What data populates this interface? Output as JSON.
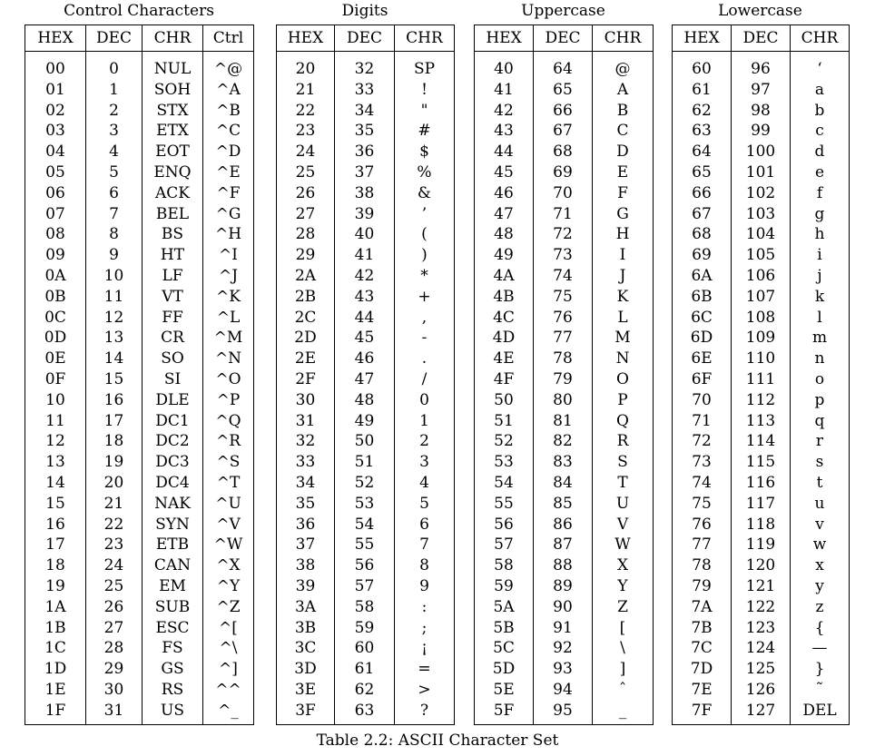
{
  "caption": "Table 2.2: ASCII Character Set",
  "groups": [
    {
      "title": "Control Characters",
      "headers": [
        "HEX",
        "DEC",
        "CHR",
        "Ctrl"
      ],
      "rows": [
        [
          "00",
          "0",
          "NUL",
          "^@"
        ],
        [
          "01",
          "1",
          "SOH",
          "^A"
        ],
        [
          "02",
          "2",
          "STX",
          "^B"
        ],
        [
          "03",
          "3",
          "ETX",
          "^C"
        ],
        [
          "04",
          "4",
          "EOT",
          "^D"
        ],
        [
          "05",
          "5",
          "ENQ",
          "^E"
        ],
        [
          "06",
          "6",
          "ACK",
          "^F"
        ],
        [
          "07",
          "7",
          "BEL",
          "^G"
        ],
        [
          "08",
          "8",
          "BS",
          "^H"
        ],
        [
          "09",
          "9",
          "HT",
          "^I"
        ],
        [
          "0A",
          "10",
          "LF",
          "^J"
        ],
        [
          "0B",
          "11",
          "VT",
          "^K"
        ],
        [
          "0C",
          "12",
          "FF",
          "^L"
        ],
        [
          "0D",
          "13",
          "CR",
          "^M"
        ],
        [
          "0E",
          "14",
          "SO",
          "^N"
        ],
        [
          "0F",
          "15",
          "SI",
          "^O"
        ],
        [
          "10",
          "16",
          "DLE",
          "^P"
        ],
        [
          "11",
          "17",
          "DC1",
          "^Q"
        ],
        [
          "12",
          "18",
          "DC2",
          "^R"
        ],
        [
          "13",
          "19",
          "DC3",
          "^S"
        ],
        [
          "14",
          "20",
          "DC4",
          "^T"
        ],
        [
          "15",
          "21",
          "NAK",
          "^U"
        ],
        [
          "16",
          "22",
          "SYN",
          "^V"
        ],
        [
          "17",
          "23",
          "ETB",
          "^W"
        ],
        [
          "18",
          "24",
          "CAN",
          "^X"
        ],
        [
          "19",
          "25",
          "EM",
          "^Y"
        ],
        [
          "1A",
          "26",
          "SUB",
          "^Z"
        ],
        [
          "1B",
          "27",
          "ESC",
          "^["
        ],
        [
          "1C",
          "28",
          "FS",
          "^\\"
        ],
        [
          "1D",
          "29",
          "GS",
          "^]"
        ],
        [
          "1E",
          "30",
          "RS",
          "^^"
        ],
        [
          "1F",
          "31",
          "US",
          "^_"
        ]
      ]
    },
    {
      "title": "Digits",
      "headers": [
        "HEX",
        "DEC",
        "CHR"
      ],
      "rows": [
        [
          "20",
          "32",
          "SP"
        ],
        [
          "21",
          "33",
          "!"
        ],
        [
          "22",
          "34",
          "\""
        ],
        [
          "23",
          "35",
          "#"
        ],
        [
          "24",
          "36",
          "$"
        ],
        [
          "25",
          "37",
          "%"
        ],
        [
          "26",
          "38",
          "&"
        ],
        [
          "27",
          "39",
          "’"
        ],
        [
          "28",
          "40",
          "("
        ],
        [
          "29",
          "41",
          ")"
        ],
        [
          "2A",
          "42",
          "*"
        ],
        [
          "2B",
          "43",
          "+"
        ],
        [
          "2C",
          "44",
          ","
        ],
        [
          "2D",
          "45",
          "-"
        ],
        [
          "2E",
          "46",
          "."
        ],
        [
          "2F",
          "47",
          "/"
        ],
        [
          "30",
          "48",
          "0"
        ],
        [
          "31",
          "49",
          "1"
        ],
        [
          "32",
          "50",
          "2"
        ],
        [
          "33",
          "51",
          "3"
        ],
        [
          "34",
          "52",
          "4"
        ],
        [
          "35",
          "53",
          "5"
        ],
        [
          "36",
          "54",
          "6"
        ],
        [
          "37",
          "55",
          "7"
        ],
        [
          "38",
          "56",
          "8"
        ],
        [
          "39",
          "57",
          "9"
        ],
        [
          "3A",
          "58",
          ":"
        ],
        [
          "3B",
          "59",
          ";"
        ],
        [
          "3C",
          "60",
          "¡"
        ],
        [
          "3D",
          "61",
          "="
        ],
        [
          "3E",
          "62",
          ">"
        ],
        [
          "3F",
          "63",
          "?"
        ]
      ]
    },
    {
      "title": "Uppercase",
      "headers": [
        "HEX",
        "DEC",
        "CHR"
      ],
      "rows": [
        [
          "40",
          "64",
          "@"
        ],
        [
          "41",
          "65",
          "A"
        ],
        [
          "42",
          "66",
          "B"
        ],
        [
          "43",
          "67",
          "C"
        ],
        [
          "44",
          "68",
          "D"
        ],
        [
          "45",
          "69",
          "E"
        ],
        [
          "46",
          "70",
          "F"
        ],
        [
          "47",
          "71",
          "G"
        ],
        [
          "48",
          "72",
          "H"
        ],
        [
          "49",
          "73",
          "I"
        ],
        [
          "4A",
          "74",
          "J"
        ],
        [
          "4B",
          "75",
          "K"
        ],
        [
          "4C",
          "76",
          "L"
        ],
        [
          "4D",
          "77",
          "M"
        ],
        [
          "4E",
          "78",
          "N"
        ],
        [
          "4F",
          "79",
          "O"
        ],
        [
          "50",
          "80",
          "P"
        ],
        [
          "51",
          "81",
          "Q"
        ],
        [
          "52",
          "82",
          "R"
        ],
        [
          "53",
          "83",
          "S"
        ],
        [
          "54",
          "84",
          "T"
        ],
        [
          "55",
          "85",
          "U"
        ],
        [
          "56",
          "86",
          "V"
        ],
        [
          "57",
          "87",
          "W"
        ],
        [
          "58",
          "88",
          "X"
        ],
        [
          "59",
          "89",
          "Y"
        ],
        [
          "5A",
          "90",
          "Z"
        ],
        [
          "5B",
          "91",
          "["
        ],
        [
          "5C",
          "92",
          "\\"
        ],
        [
          "5D",
          "93",
          "]"
        ],
        [
          "5E",
          "94",
          "ˆ"
        ],
        [
          "5F",
          "95",
          "_"
        ]
      ]
    },
    {
      "title": "Lowercase",
      "headers": [
        "HEX",
        "DEC",
        "CHR"
      ],
      "rows": [
        [
          "60",
          "96",
          "‘"
        ],
        [
          "61",
          "97",
          "a"
        ],
        [
          "62",
          "98",
          "b"
        ],
        [
          "63",
          "99",
          "c"
        ],
        [
          "64",
          "100",
          "d"
        ],
        [
          "65",
          "101",
          "e"
        ],
        [
          "66",
          "102",
          "f"
        ],
        [
          "67",
          "103",
          "g"
        ],
        [
          "68",
          "104",
          "h"
        ],
        [
          "69",
          "105",
          "i"
        ],
        [
          "6A",
          "106",
          "j"
        ],
        [
          "6B",
          "107",
          "k"
        ],
        [
          "6C",
          "108",
          "l"
        ],
        [
          "6D",
          "109",
          "m"
        ],
        [
          "6E",
          "110",
          "n"
        ],
        [
          "6F",
          "111",
          "o"
        ],
        [
          "70",
          "112",
          "p"
        ],
        [
          "71",
          "113",
          "q"
        ],
        [
          "72",
          "114",
          "r"
        ],
        [
          "73",
          "115",
          "s"
        ],
        [
          "74",
          "116",
          "t"
        ],
        [
          "75",
          "117",
          "u"
        ],
        [
          "76",
          "118",
          "v"
        ],
        [
          "77",
          "119",
          "w"
        ],
        [
          "78",
          "120",
          "x"
        ],
        [
          "79",
          "121",
          "y"
        ],
        [
          "7A",
          "122",
          "z"
        ],
        [
          "7B",
          "123",
          "{"
        ],
        [
          "7C",
          "124",
          "—"
        ],
        [
          "7D",
          "125",
          "}"
        ],
        [
          "7E",
          "126",
          "˜"
        ],
        [
          "7F",
          "127",
          "DEL"
        ]
      ]
    }
  ]
}
